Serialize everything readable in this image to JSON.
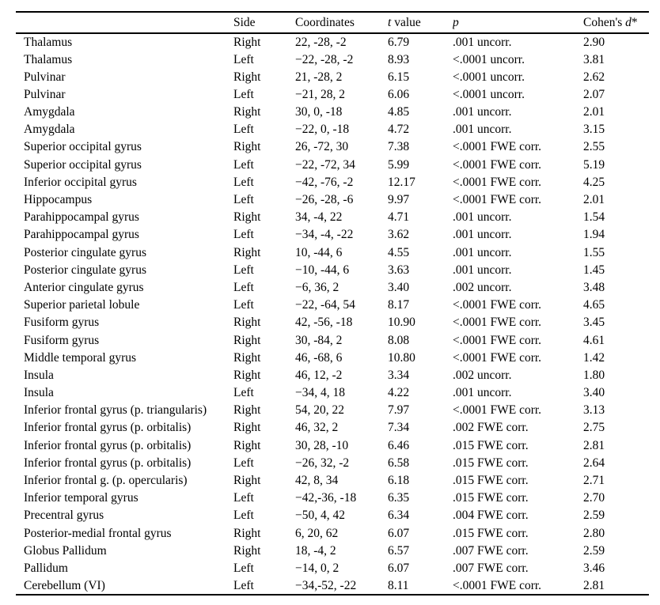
{
  "table": {
    "header": {
      "region": "",
      "side": "Side",
      "coordinates": "Coordinates",
      "t_italic": "t",
      "t_rest": " value",
      "p_italic": "p",
      "cohens_prefix": "Cohen's ",
      "cohens_italic": "d",
      "cohens_suffix": "*"
    },
    "rows": [
      {
        "region": "Thalamus",
        "side": "Right",
        "coordinates": "22, -28, -2",
        "t": "6.79",
        "p": ".001 uncorr.",
        "d": "2.90"
      },
      {
        "region": "Thalamus",
        "side": "Left",
        "coordinates": "−22, -28, -2",
        "t": "8.93",
        "p": "<.0001 uncorr.",
        "d": "3.81"
      },
      {
        "region": "Pulvinar",
        "side": "Right",
        "coordinates": "21, -28, 2",
        "t": "6.15",
        "p": "<.0001 uncorr.",
        "d": "2.62"
      },
      {
        "region": "Pulvinar",
        "side": "Left",
        "coordinates": "−21, 28, 2",
        "t": "6.06",
        "p": "<.0001 uncorr.",
        "d": "2.07"
      },
      {
        "region": "Amygdala",
        "side": "Right",
        "coordinates": "30, 0, -18",
        "t": "4.85",
        "p": ".001 uncorr.",
        "d": "2.01"
      },
      {
        "region": "Amygdala",
        "side": "Left",
        "coordinates": "−22, 0, -18",
        "t": "4.72",
        "p": ".001 uncorr.",
        "d": "3.15"
      },
      {
        "region": "Superior occipital gyrus",
        "side": "Right",
        "coordinates": "26, -72, 30",
        "t": "7.38",
        "p": "<.0001 FWE corr.",
        "d": "2.55"
      },
      {
        "region": "Superior occipital gyrus",
        "side": "Left",
        "coordinates": "−22, -72, 34",
        "t": "5.99",
        "p": "<.0001 FWE corr.",
        "d": "5.19"
      },
      {
        "region": "Inferior occipital gyrus",
        "side": "Left",
        "coordinates": "−42, -76, -2",
        "t": "12.17",
        "p": "<.0001 FWE corr.",
        "d": "4.25"
      },
      {
        "region": "Hippocampus",
        "side": "Left",
        "coordinates": "−26, -28, -6",
        "t": "9.97",
        "p": "<.0001 FWE corr.",
        "d": "2.01"
      },
      {
        "region": "Parahippocampal gyrus",
        "side": "Right",
        "coordinates": "34, -4, 22",
        "t": "4.71",
        "p": ".001 uncorr.",
        "d": "1.54"
      },
      {
        "region": "Parahippocampal gyrus",
        "side": "Left",
        "coordinates": "−34, -4, -22",
        "t": "3.62",
        "p": ".001 uncorr.",
        "d": "1.94"
      },
      {
        "region": "Posterior cingulate gyrus",
        "side": "Right",
        "coordinates": "10, -44, 6",
        "t": "4.55",
        "p": ".001 uncorr.",
        "d": "1.55"
      },
      {
        "region": "Posterior cingulate gyrus",
        "side": "Left",
        "coordinates": "−10, -44, 6",
        "t": "3.63",
        "p": ".001 uncorr.",
        "d": "1.45"
      },
      {
        "region": "Anterior cingulate gyrus",
        "side": "Left",
        "coordinates": "−6, 36, 2",
        "t": "3.40",
        "p": ".002 uncorr.",
        "d": "3.48"
      },
      {
        "region": "Superior parietal lobule",
        "side": "Left",
        "coordinates": "−22, -64, 54",
        "t": "8.17",
        "p": "<.0001 FWE corr.",
        "d": "4.65"
      },
      {
        "region": "Fusiform gyrus",
        "side": "Right",
        "coordinates": "42, -56, -18",
        "t": "10.90",
        "p": "<.0001 FWE corr.",
        "d": "3.45"
      },
      {
        "region": "Fusiform gyrus",
        "side": "Right",
        "coordinates": "30, -84, 2",
        "t": "8.08",
        "p": "<.0001 FWE corr.",
        "d": "4.61"
      },
      {
        "region": "Middle temporal gyrus",
        "side": "Right",
        "coordinates": "46, -68, 6",
        "t": "10.80",
        "p": "<.0001 FWE corr.",
        "d": "1.42"
      },
      {
        "region": "Insula",
        "side": "Right",
        "coordinates": "46, 12, -2",
        "t": "3.34",
        "p": ".002 uncorr.",
        "d": "1.80"
      },
      {
        "region": "Insula",
        "side": "Left",
        "coordinates": "−34, 4, 18",
        "t": "4.22",
        "p": ".001 uncorr.",
        "d": "3.40"
      },
      {
        "region": "Inferior frontal gyrus (p. triangularis)",
        "side": "Right",
        "coordinates": "54, 20, 22",
        "t": "7.97",
        "p": "<.0001 FWE corr.",
        "d": "3.13"
      },
      {
        "region": "Inferior frontal gyrus (p. orbitalis)",
        "side": "Right",
        "coordinates": "46, 32, 2",
        "t": "7.34",
        "p": ".002 FWE corr.",
        "d": "2.75"
      },
      {
        "region": "Inferior frontal gyrus (p. orbitalis)",
        "side": "Right",
        "coordinates": "30, 28, -10",
        "t": "6.46",
        "p": ".015 FWE corr.",
        "d": "2.81"
      },
      {
        "region": "Inferior frontal gyrus (p. orbitalis)",
        "side": "Left",
        "coordinates": "−26, 32, -2",
        "t": "6.58",
        "p": ".015 FWE corr.",
        "d": "2.64"
      },
      {
        "region": "Inferior frontal g. (p. opercularis)",
        "side": "Right",
        "coordinates": "42, 8, 34",
        "t": "6.18",
        "p": ".015 FWE corr.",
        "d": "2.71"
      },
      {
        "region": "Inferior temporal gyrus",
        "side": "Left",
        "coordinates": "−42,-36, -18",
        "t": "6.35",
        "p": ".015 FWE corr.",
        "d": "2.70"
      },
      {
        "region": "Precentral gyrus",
        "side": "Left",
        "coordinates": "−50, 4, 42",
        "t": "6.34",
        "p": ".004 FWE corr.",
        "d": "2.59"
      },
      {
        "region": "Posterior-medial frontal gyrus",
        "side": "Right",
        "coordinates": "6, 20, 62",
        "t": "6.07",
        "p": ".015 FWE corr.",
        "d": "2.80"
      },
      {
        "region": "Globus Pallidum",
        "side": "Right",
        "coordinates": "18, -4, 2",
        "t": "6.57",
        "p": ".007 FWE corr.",
        "d": "2.59"
      },
      {
        "region": "Pallidum",
        "side": "Left",
        "coordinates": "−14, 0, 2",
        "t": "6.07",
        "p": ".007 FWE corr.",
        "d": "3.46"
      },
      {
        "region": "Cerebellum (VI)",
        "side": "Left",
        "coordinates": "−34,-52, -22",
        "t": "8.11",
        "p": "<.0001 FWE corr.",
        "d": "2.81"
      }
    ]
  },
  "colors": {
    "background": "#ffffff",
    "text": "#000000",
    "rule": "#000000"
  }
}
